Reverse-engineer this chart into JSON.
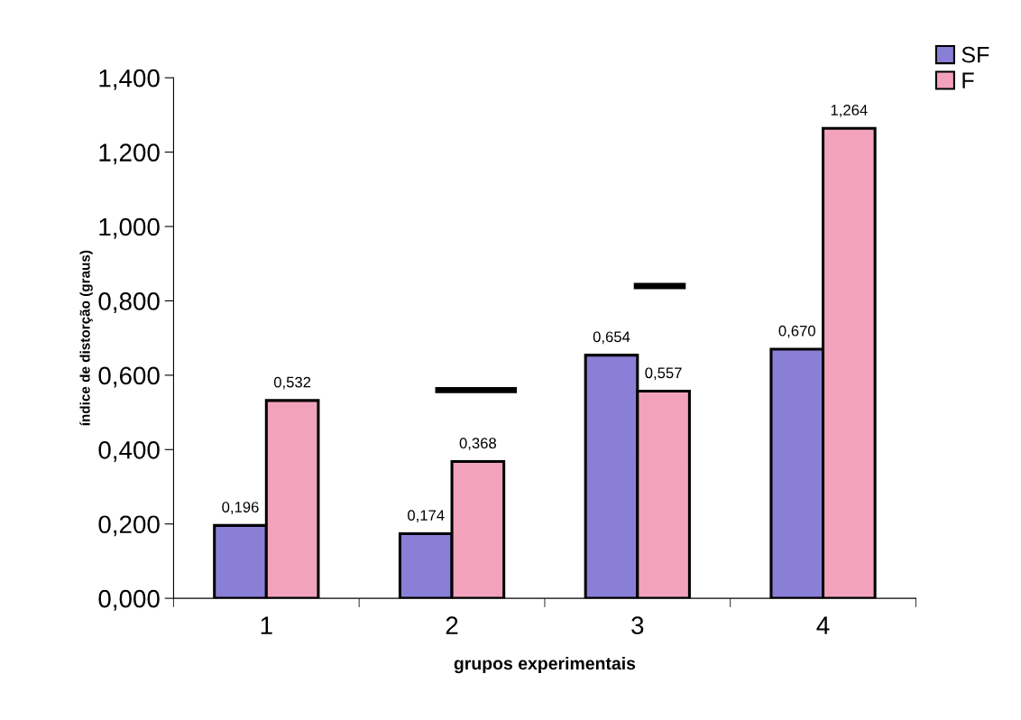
{
  "chart_data": {
    "type": "bar",
    "categories": [
      "1",
      "2",
      "3",
      "4"
    ],
    "xlabel": "grupos experimentais",
    "ylabel": "índice de distorção (graus)",
    "series": [
      {
        "name": "SF",
        "color": "#8a7fd6",
        "values": [
          0.196,
          0.174,
          0.654,
          0.67
        ],
        "value_labels": [
          "0,196",
          "0,174",
          "0,654",
          "0,670"
        ]
      },
      {
        "name": "F",
        "color": "#f2a3bb",
        "values": [
          0.532,
          0.368,
          0.557,
          1.264
        ],
        "value_labels": [
          "0,532",
          "0,368",
          "0,557",
          "1,264"
        ]
      }
    ],
    "ylim": [
      0,
      1.4
    ],
    "yticks": [
      {
        "value": 0,
        "label": "0,000"
      },
      {
        "value": 0.2,
        "label": "0,200"
      },
      {
        "value": 0.4,
        "label": "0,400"
      },
      {
        "value": 0.6,
        "label": "0,600"
      },
      {
        "value": 0.8,
        "label": "0,800"
      },
      {
        "value": 1.0,
        "label": "1,000"
      },
      {
        "value": 1.2,
        "label": "1,200"
      },
      {
        "value": 1.4,
        "label": "1,400"
      }
    ],
    "grid": false,
    "legend": "top right"
  }
}
